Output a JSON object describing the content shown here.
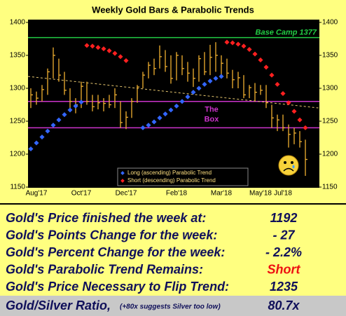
{
  "chart_data": {
    "type": "ohlc",
    "title": "Weekly Gold Bars & Parabolic Trends",
    "categories": [
      null,
      "Aug'17",
      null,
      null,
      null,
      null,
      null,
      null,
      null,
      "Oct'17",
      null,
      null,
      null,
      null,
      null,
      null,
      null,
      "Dec'17",
      null,
      null,
      null,
      null,
      null,
      null,
      null,
      null,
      "Feb'18",
      null,
      null,
      null,
      null,
      null,
      null,
      null,
      "Mar'18",
      null,
      null,
      null,
      null,
      null,
      null,
      "May'18",
      null,
      null,
      null,
      "Jul'18",
      null,
      null,
      null,
      null
    ],
    "high": [
      1300,
      1295,
      1305,
      1330,
      1362,
      1345,
      1325,
      1300,
      1285,
      1310,
      1310,
      1290,
      1290,
      1285,
      1290,
      1300,
      1280,
      1265,
      1285,
      1305,
      1325,
      1340,
      1345,
      1365,
      1358,
      1350,
      1355,
      1350,
      1340,
      1330,
      1350,
      1355,
      1366,
      1370,
      1350,
      1345,
      1328,
      1325,
      1320,
      1305,
      1308,
      1305,
      1305,
      1275,
      1260,
      1260,
      1245,
      1240,
      1235,
      1222
    ],
    "low": [
      1270,
      1275,
      1280,
      1290,
      1315,
      1310,
      1290,
      1270,
      1262,
      1270,
      1275,
      1265,
      1268,
      1265,
      1270,
      1270,
      1240,
      1238,
      1255,
      1278,
      1300,
      1315,
      1320,
      1330,
      1325,
      1307,
      1312,
      1320,
      1310,
      1302,
      1310,
      1320,
      1320,
      1325,
      1320,
      1315,
      1300,
      1300,
      1285,
      1285,
      1280,
      1290,
      1270,
      1240,
      1235,
      1235,
      1210,
      1215,
      1210,
      1167
    ],
    "close": [
      1290,
      1285,
      1298,
      1325,
      1350,
      1320,
      1297,
      1280,
      1275,
      1303,
      1280,
      1272,
      1278,
      1277,
      1275,
      1290,
      1248,
      1256,
      1280,
      1302,
      1320,
      1335,
      1330,
      1348,
      1333,
      1315,
      1350,
      1330,
      1323,
      1315,
      1345,
      1325,
      1347,
      1350,
      1338,
      1323,
      1313,
      1316,
      1290,
      1301,
      1294,
      1297,
      1278,
      1255,
      1252,
      1240,
      1230,
      1232,
      1219,
      1192
    ],
    "bar_color": "#f0b030",
    "series": [
      {
        "name": "Long (ascending) Parabolic Trend",
        "color": "#3366ff",
        "values": [
          1208,
          1217,
          1226,
          1235,
          1244,
          1252,
          1260,
          1267,
          1273,
          1279,
          null,
          null,
          null,
          null,
          null,
          null,
          null,
          null,
          null,
          null,
          1240,
          1244,
          1249,
          1255,
          1261,
          1267,
          1273,
          1280,
          1287,
          1294,
          1300,
          1306,
          1311,
          1315,
          1318,
          null,
          null,
          null,
          null,
          null,
          null,
          null,
          null,
          null,
          null,
          null,
          null,
          null,
          null,
          null
        ]
      },
      {
        "name": "Short (descending) Parabolic Trend",
        "color": "#ff2020",
        "values": [
          null,
          null,
          null,
          null,
          null,
          null,
          null,
          null,
          null,
          null,
          1365,
          1364,
          1362,
          1360,
          1357,
          1353,
          1348,
          1342,
          null,
          null,
          null,
          null,
          null,
          null,
          null,
          null,
          null,
          null,
          null,
          null,
          null,
          null,
          null,
          null,
          null,
          1370,
          1369,
          1367,
          1364,
          1359,
          1352,
          1343,
          1332,
          1320,
          1306,
          1292,
          1278,
          1265,
          1252,
          1240
        ]
      }
    ],
    "ylim": [
      1150,
      1400
    ],
    "yticks": [
      1150,
      1200,
      1250,
      1300,
      1350,
      1400
    ],
    "base_camp": {
      "label": "Base Camp 1377",
      "value": 1377,
      "color": "#22cc44"
    },
    "box": {
      "label_lines": [
        "The",
        "Box"
      ],
      "upper": 1280,
      "lower": 1240,
      "color": "#cc33cc"
    },
    "trendline": {
      "start": 1318,
      "end": 1270,
      "color": "#e8c870"
    }
  },
  "table": {
    "rows": [
      {
        "label": "Gold's Price finished the week at:",
        "value": "1192"
      },
      {
        "label": "Gold's Points Change for the week:",
        "value": "- 27"
      },
      {
        "label": "Gold's Percent Change for the week:",
        "value": "- 2.2%"
      },
      {
        "label": "Gold's Parabolic Trend Remains:",
        "value": "Short"
      },
      {
        "label": "Gold's Price Necessary to Flip Trend:",
        "value": "1235"
      }
    ],
    "ratio": {
      "label": "Gold/Silver Ratio,",
      "note": "(+80x suggests Silver too low)",
      "value": "80.7x"
    }
  }
}
